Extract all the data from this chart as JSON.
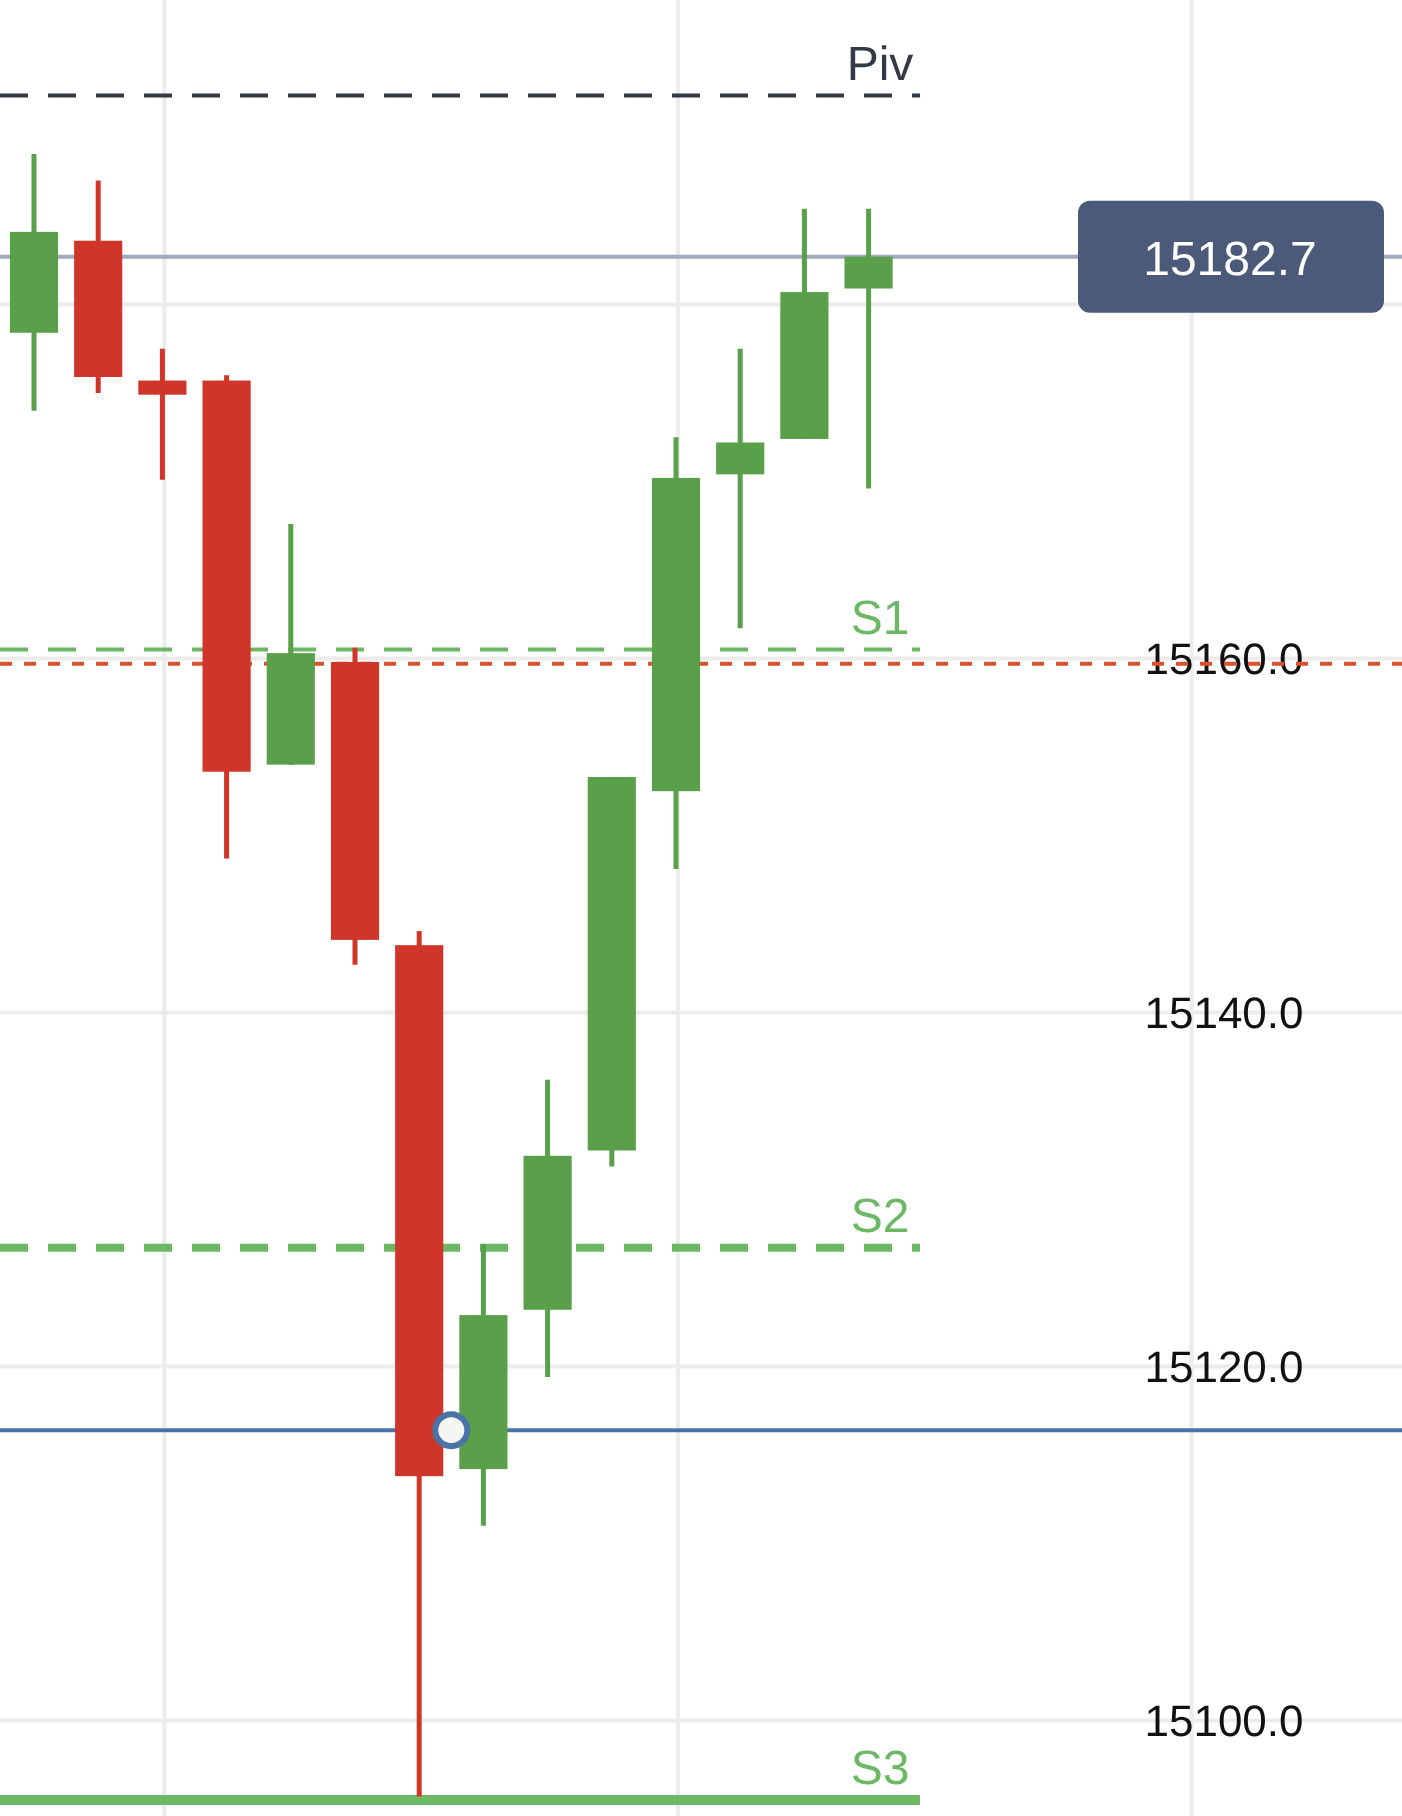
{
  "chart_data": {
    "type": "candlestick",
    "categories": [
      null,
      null,
      null,
      null,
      null,
      null,
      null,
      null,
      null,
      null,
      null,
      null,
      null,
      null
    ],
    "ohlc": [
      [
        15178.4,
        15188.5,
        15174.0,
        15184.1
      ],
      [
        15183.6,
        15187.0,
        15175.0,
        15175.9
      ],
      [
        15175.7,
        15177.5,
        15170.1,
        15174.9
      ],
      [
        15175.7,
        15176.0,
        15148.7,
        15153.6
      ],
      [
        15154.0,
        15167.6,
        15154.0,
        15160.3
      ],
      [
        15159.8,
        15160.6,
        15142.7,
        15144.1
      ],
      [
        15143.8,
        15144.6,
        15095.7,
        15113.8
      ],
      [
        15114.2,
        15126.9,
        15111.0,
        15122.9
      ],
      [
        15123.2,
        15136.2,
        15119.4,
        15131.9
      ],
      [
        15132.2,
        15153.3,
        15131.3,
        15153.3
      ],
      [
        15152.5,
        15172.5,
        15148.1,
        15170.2
      ],
      [
        15170.4,
        15177.5,
        15161.7,
        15172.2
      ],
      [
        15172.4,
        15185.4,
        15172.4,
        15180.7
      ],
      [
        15180.9,
        15185.4,
        15169.6,
        15182.7
      ]
    ],
    "colors": [
      "#5aa04a",
      "#cf3529",
      "#cf3529",
      "#cf3529",
      "#5aa04a",
      "#cf3529",
      "#cf3529",
      "#5aa04a",
      "#5aa04a",
      "#5aa04a",
      "#5aa04a",
      "#5aa04a",
      "#5aa04a",
      "#5aa04a"
    ],
    "ylim": [
      15094.6,
      15197.2
    ],
    "yticks": [
      {
        "value": 15100,
        "label": "15100.0"
      },
      {
        "value": 15120,
        "label": "15120.0"
      },
      {
        "value": 15140,
        "label": "15140.0"
      },
      {
        "value": 15160,
        "label": "15160.0"
      },
      {
        "value": 15180,
        "label": null
      }
    ],
    "grid": true,
    "ref_lines": [
      {
        "axis": "y",
        "value": 15191.8,
        "label": "Piv",
        "color": "#333a45",
        "line_style": "dashed"
      },
      {
        "axis": "y",
        "value": 15182.7,
        "color": "#a0aabb",
        "line_style": "solid"
      },
      {
        "axis": "y",
        "value": 15160.5,
        "label": "S1",
        "color": "#6db865",
        "line_style": "dashed"
      },
      {
        "axis": "y",
        "value": 15159.7,
        "color": "#d9532c",
        "line_style": "dotted"
      },
      {
        "axis": "y",
        "value": 15126.7,
        "label": "S2",
        "color": "#6db865",
        "line_style": "dashed"
      },
      {
        "axis": "y",
        "value": 15116.4,
        "color": "#4a74a8",
        "line_style": "solid"
      },
      {
        "axis": "y",
        "value": 15095.5,
        "label": "S3",
        "color": "#6db865",
        "line_style": "solid"
      }
    ],
    "annotations": [
      {
        "text": "15182.7",
        "y": 15182.7
      }
    ]
  }
}
